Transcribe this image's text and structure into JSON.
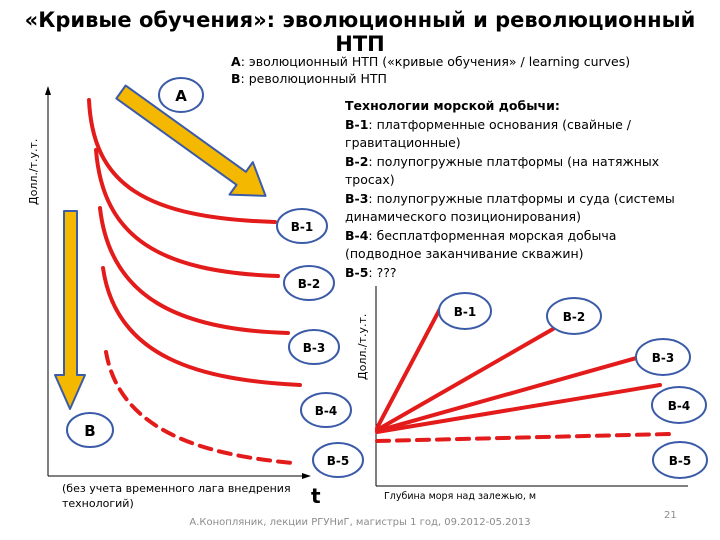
{
  "title": "«Кривые обучения»: эволюционный и революционный НТП",
  "legend_top": {
    "a_key": "A",
    "a_text": ": эволюционный НТП («кривые обучения» / learning curves)",
    "b_key": "B",
    "b_text": ": революционный НТП"
  },
  "legend_right": {
    "header": "Технологии морской добычи:",
    "items": [
      {
        "key": "B-1",
        "text": ": платформенные основания (свайные / гравитационные)"
      },
      {
        "key": "B-2",
        "text": ": полупогружные платформы (на натяжных тросах)"
      },
      {
        "key": "B-3",
        "text": ": полупогружные платформы и суда (системы динамического позиционирования)"
      },
      {
        "key": "B-4",
        "text": ": бесплатформенная морская добыча (подводное заканчивание скважин)"
      },
      {
        "key": "B-5",
        "text": ": ???"
      }
    ]
  },
  "left_chart": {
    "ylabel": "Долл./т.у.т.",
    "xlabel": "t",
    "note": "(без учета временного лага внедрения технологий)",
    "arrow_a_label": "A",
    "arrow_b_label": "B",
    "curve_labels": [
      "B-1",
      "B-2",
      "B-3",
      "B-4",
      "B-5"
    ]
  },
  "right_chart": {
    "ylabel": "Долл./т.у.т.",
    "xlabel": "Глубина моря над залежью, м",
    "line_labels": [
      "B-1",
      "B-2",
      "B-3",
      "B-4",
      "B-5"
    ]
  },
  "footer": "А.Конопляник, лекции РГУНиГ, магистры 1 год, 09.2012-05.2013",
  "page_number": "21",
  "colors": {
    "curve": "#e31b1b",
    "arrow_fill": "#f5b800",
    "arrow_stroke": "#3b5ba8",
    "ellipse_stroke": "#3b5ba8"
  }
}
